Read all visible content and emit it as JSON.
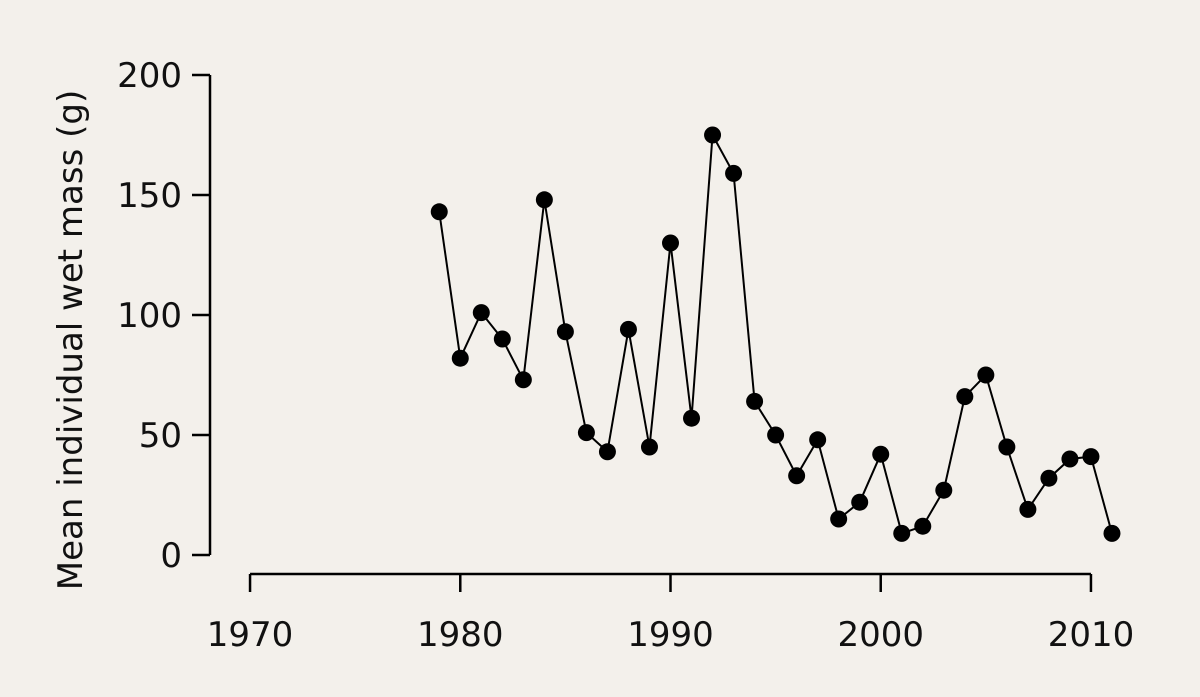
{
  "chart_data": {
    "type": "line",
    "ylabel": "Mean individual wet mass (g)",
    "x": [
      1979,
      1980,
      1981,
      1982,
      1983,
      1984,
      1985,
      1986,
      1987,
      1988,
      1989,
      1990,
      1991,
      1992,
      1993,
      1994,
      1995,
      1996,
      1997,
      1998,
      1999,
      2000,
      2001,
      2002,
      2003,
      2004,
      2005,
      2006,
      2007,
      2008,
      2009,
      2010,
      2011
    ],
    "series": [
      {
        "color": "#000000",
        "values": [
          143,
          82,
          101,
          90,
          73,
          148,
          93,
          51,
          43,
          94,
          45,
          130,
          57,
          175,
          159,
          64,
          50,
          33,
          48,
          15,
          22,
          42,
          9,
          12,
          27,
          66,
          75,
          45,
          19,
          32,
          40,
          41,
          9
        ]
      }
    ],
    "xlim": [
      1968,
      2012
    ],
    "xticks": [
      1970,
      1980,
      1990,
      2000,
      2010
    ],
    "ylim": [
      -8,
      208
    ],
    "yticks": [
      0,
      50,
      100,
      150,
      200
    ]
  }
}
